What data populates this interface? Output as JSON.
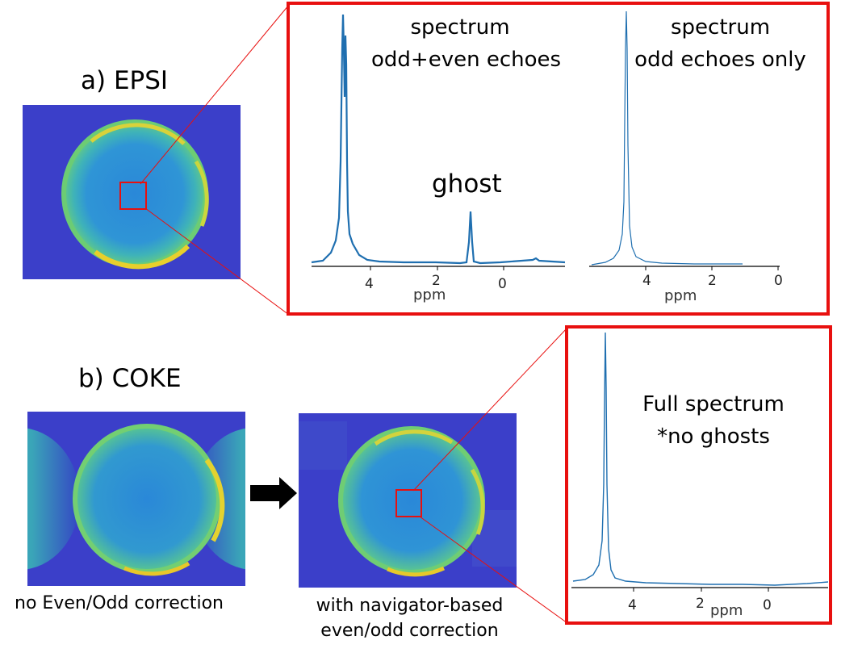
{
  "section_a": {
    "title": "a) EPSI"
  },
  "section_b": {
    "title": "b) COKE"
  },
  "spectrum_odd_even": {
    "title_line1": "spectrum",
    "title_line2": "odd+even echoes",
    "ghost_label": "ghost",
    "ticks": [
      "4",
      "2",
      "0"
    ],
    "unit": "ppm"
  },
  "spectrum_odd_only": {
    "title_line1": "spectrum",
    "title_line2": "odd echoes only",
    "ticks": [
      "4",
      "2",
      "0"
    ],
    "unit": "ppm"
  },
  "spectrum_full": {
    "title_line1": "Full spectrum",
    "title_line2": "*no ghosts",
    "ticks": [
      "4",
      "2",
      "0"
    ],
    "unit": "ppm"
  },
  "caption_no_correction": "no Even/Odd correction",
  "caption_with_correction_line1": "with navigator-based",
  "caption_with_correction_line2": "even/odd correction",
  "colors": {
    "frame_red": "#e8100f",
    "spectrum_blue": "#1f6fb0",
    "background_blue": "#3b3fc9"
  },
  "chart_data": [
    {
      "type": "line",
      "title": "spectrum odd+even echoes",
      "xlabel": "ppm",
      "x_ticks": [
        4,
        2,
        0
      ],
      "annotations": [
        "ghost"
      ],
      "peaks": [
        {
          "ppm": 4.8,
          "relative_height": 1.0
        },
        {
          "ppm": 1.0,
          "relative_height": 0.21
        }
      ]
    },
    {
      "type": "line",
      "title": "spectrum odd echoes only",
      "xlabel": "ppm",
      "x_ticks": [
        4,
        2,
        0
      ],
      "peaks": [
        {
          "ppm": 4.8,
          "relative_height": 1.0
        }
      ]
    },
    {
      "type": "line",
      "title": "Full spectrum *no ghosts",
      "xlabel": "ppm",
      "x_ticks": [
        4,
        2,
        0
      ],
      "peaks": [
        {
          "ppm": 4.8,
          "relative_height": 1.0
        }
      ]
    }
  ]
}
